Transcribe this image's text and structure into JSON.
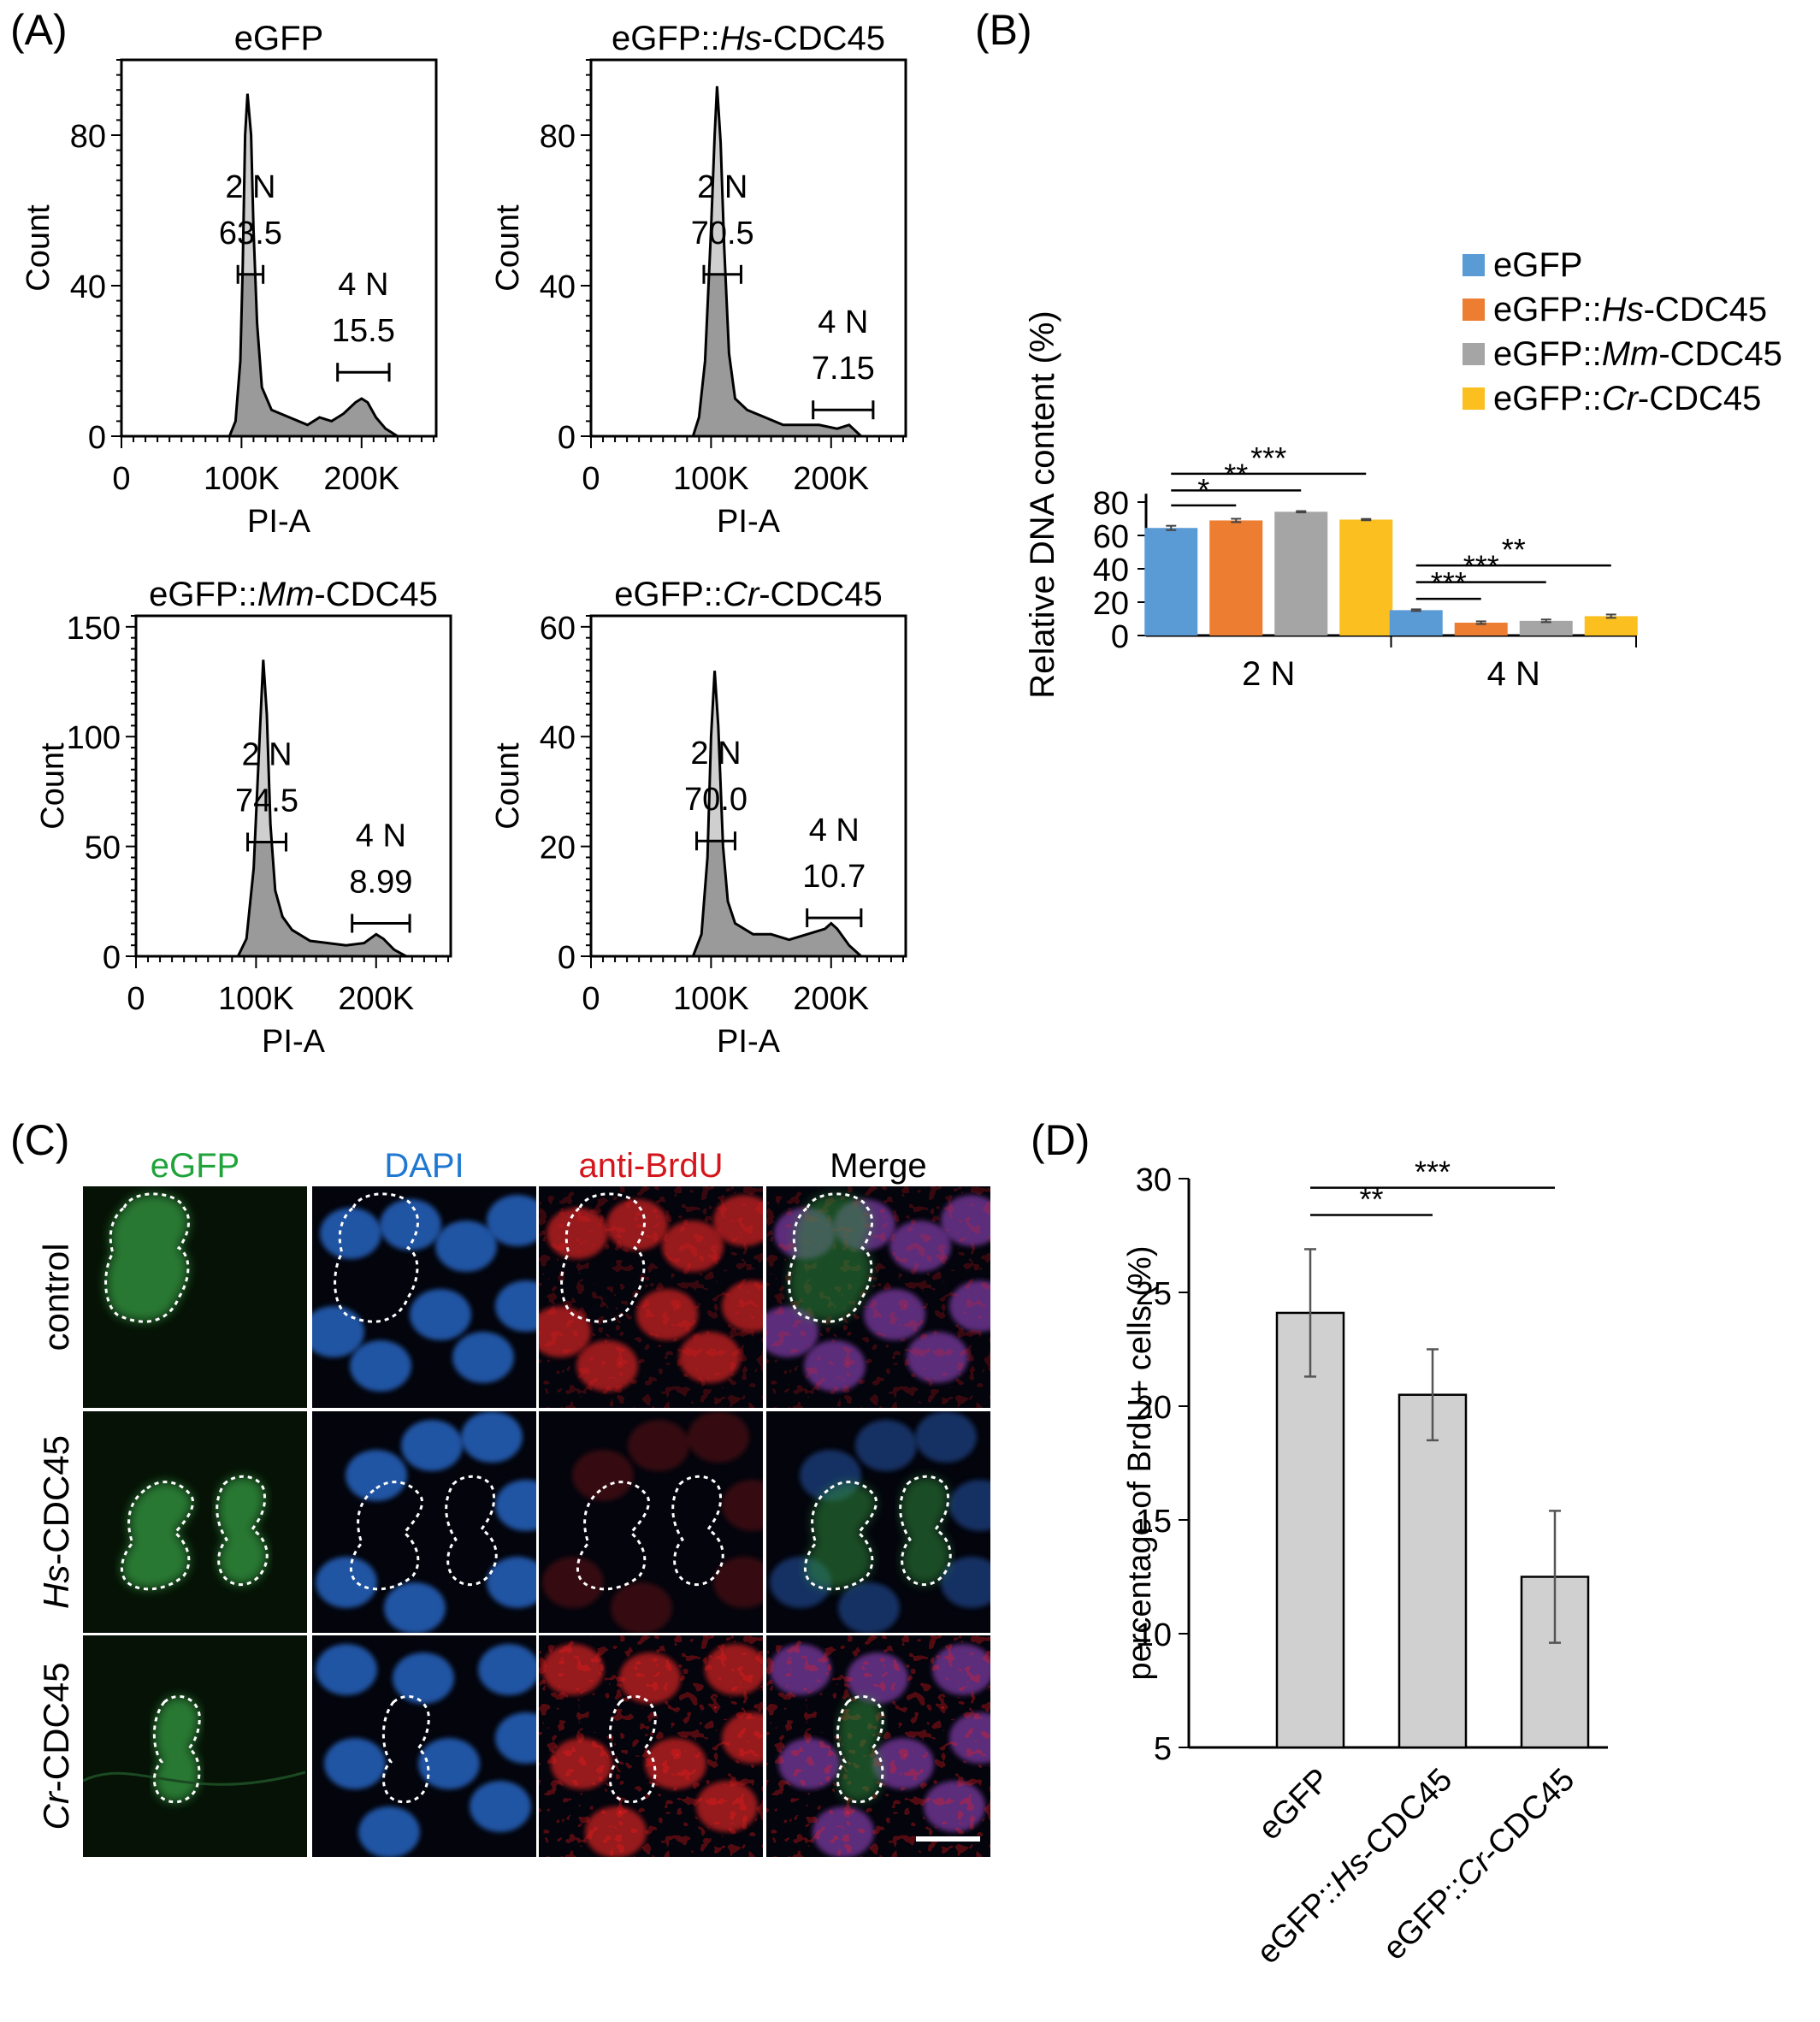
{
  "panel_labels": {
    "A": "(A)",
    "B": "(B)",
    "C": "(C)",
    "D": "(D)"
  },
  "colors": {
    "hist_fill": "#9a9a9a",
    "hist_highlight": "#cfcfcf",
    "eGFP": "#5b9bd5",
    "Hs": "#ed7d31",
    "Mm": "#a5a5a5",
    "Cr": "#fbbf1f",
    "bar_gray": "#d0d0d0",
    "gfp_green": "#1fa33a",
    "dapi_blue": "#1f78d1",
    "brdu_red": "#d4161c"
  },
  "chart_data": [
    {
      "id": "A1",
      "type": "area",
      "title": "eGFP",
      "title_parts": [
        {
          "text": "eGFP",
          "italic": false
        }
      ],
      "xlabel": "PI-A",
      "ylabel": "Count",
      "xlim": [
        0,
        262144
      ],
      "ylim": [
        0,
        100
      ],
      "xticks": [
        0,
        100000,
        200000
      ],
      "xtick_labels": [
        "0",
        "100K",
        "200K"
      ],
      "yticks": [
        0,
        40,
        80
      ],
      "ytick_labels": [
        "0",
        "40",
        "80"
      ],
      "curve": [
        [
          90000,
          0
        ],
        [
          95000,
          4
        ],
        [
          99000,
          20
        ],
        [
          101000,
          45
        ],
        [
          103000,
          80
        ],
        [
          105000,
          91
        ],
        [
          108000,
          80
        ],
        [
          110000,
          55
        ],
        [
          113000,
          30
        ],
        [
          117000,
          13
        ],
        [
          125000,
          7
        ],
        [
          140000,
          5
        ],
        [
          155000,
          3
        ],
        [
          165000,
          5
        ],
        [
          175000,
          4
        ],
        [
          185000,
          6
        ],
        [
          195000,
          9
        ],
        [
          200000,
          10
        ],
        [
          205000,
          9
        ],
        [
          212000,
          5
        ],
        [
          220000,
          2
        ],
        [
          230000,
          0
        ]
      ],
      "annotations": [
        {
          "label": "2 N",
          "value": "63.5",
          "range": [
            97000,
            118000
          ],
          "ymark": 43
        },
        {
          "label": "4 N",
          "value": "15.5",
          "range": [
            180000,
            223000
          ],
          "ymark": 17
        }
      ]
    },
    {
      "id": "A2",
      "type": "area",
      "title": "eGFP::Hs-CDC45",
      "title_parts": [
        {
          "text": "eGFP::",
          "italic": false
        },
        {
          "text": "Hs",
          "italic": true
        },
        {
          "text": "-CDC45",
          "italic": false
        }
      ],
      "xlabel": "PI-A",
      "ylabel": "Count",
      "xlim": [
        0,
        262144
      ],
      "ylim": [
        0,
        100
      ],
      "xticks": [
        0,
        100000,
        200000
      ],
      "xtick_labels": [
        "0",
        "100K",
        "200K"
      ],
      "yticks": [
        0,
        40,
        80
      ],
      "ytick_labels": [
        "0",
        "40",
        "80"
      ],
      "curve": [
        [
          85000,
          0
        ],
        [
          90000,
          5
        ],
        [
          95000,
          20
        ],
        [
          100000,
          55
        ],
        [
          103000,
          80
        ],
        [
          105000,
          93
        ],
        [
          108000,
          78
        ],
        [
          111000,
          50
        ],
        [
          115000,
          22
        ],
        [
          120000,
          10
        ],
        [
          130000,
          7
        ],
        [
          145000,
          5
        ],
        [
          160000,
          3
        ],
        [
          175000,
          3
        ],
        [
          190000,
          3
        ],
        [
          205000,
          2
        ],
        [
          215000,
          3
        ],
        [
          225000,
          0
        ]
      ],
      "annotations": [
        {
          "label": "2 N",
          "value": "70.5",
          "range": [
            94000,
            125000
          ],
          "ymark": 43
        },
        {
          "label": "4 N",
          "value": "7.15",
          "range": [
            185000,
            235000
          ],
          "ymark": 7
        }
      ]
    },
    {
      "id": "A3",
      "type": "area",
      "title": "eGFP::Mm-CDC45",
      "title_parts": [
        {
          "text": "eGFP::",
          "italic": false
        },
        {
          "text": "Mm",
          "italic": true
        },
        {
          "text": "-CDC45",
          "italic": false
        }
      ],
      "xlabel": "PI-A",
      "ylabel": "Count",
      "xlim": [
        0,
        262144
      ],
      "ylim": [
        0,
        155
      ],
      "xticks": [
        0,
        100000,
        200000
      ],
      "xtick_labels": [
        "0",
        "100K",
        "200K"
      ],
      "yticks": [
        0,
        50,
        100,
        150
      ],
      "ytick_labels": [
        "0",
        "50",
        "100",
        "150"
      ],
      "curve": [
        [
          85000,
          0
        ],
        [
          92000,
          8
        ],
        [
          98000,
          40
        ],
        [
          103000,
          100
        ],
        [
          106000,
          135
        ],
        [
          109000,
          110
        ],
        [
          112000,
          60
        ],
        [
          116000,
          30
        ],
        [
          122000,
          18
        ],
        [
          130000,
          12
        ],
        [
          145000,
          7
        ],
        [
          160000,
          6
        ],
        [
          175000,
          5
        ],
        [
          190000,
          6
        ],
        [
          200000,
          10
        ],
        [
          206000,
          8
        ],
        [
          215000,
          3
        ],
        [
          225000,
          0
        ]
      ],
      "annotations": [
        {
          "label": "2 N",
          "value": "74.5",
          "range": [
            93000,
            125000
          ],
          "ymark": 52
        },
        {
          "label": "4 N",
          "value": "8.99",
          "range": [
            180000,
            228000
          ],
          "ymark": 15
        }
      ]
    },
    {
      "id": "A4",
      "type": "area",
      "title": "eGFP::Cr-CDC45",
      "title_parts": [
        {
          "text": "eGFP::",
          "italic": false
        },
        {
          "text": "Cr",
          "italic": true
        },
        {
          "text": "-CDC45",
          "italic": false
        }
      ],
      "xlabel": "PI-A",
      "ylabel": "Count",
      "xlim": [
        0,
        262144
      ],
      "ylim": [
        0,
        62
      ],
      "xticks": [
        0,
        100000,
        200000
      ],
      "xtick_labels": [
        "0",
        "100K",
        "200K"
      ],
      "yticks": [
        0,
        20,
        40,
        60
      ],
      "ytick_labels": [
        "0",
        "20",
        "40",
        "60"
      ],
      "curve": [
        [
          85000,
          0
        ],
        [
          92000,
          4
        ],
        [
          97000,
          18
        ],
        [
          100000,
          40
        ],
        [
          103000,
          52
        ],
        [
          106000,
          42
        ],
        [
          110000,
          20
        ],
        [
          114000,
          10
        ],
        [
          120000,
          6
        ],
        [
          135000,
          4
        ],
        [
          150000,
          4
        ],
        [
          165000,
          3
        ],
        [
          180000,
          4
        ],
        [
          195000,
          5
        ],
        [
          200000,
          6
        ],
        [
          205000,
          5
        ],
        [
          215000,
          2
        ],
        [
          225000,
          0
        ]
      ],
      "annotations": [
        {
          "label": "2 N",
          "value": "70.0",
          "range": [
            88000,
            120000
          ],
          "ymark": 21
        },
        {
          "label": "4 N",
          "value": "10.7",
          "range": [
            180000,
            225000
          ],
          "ymark": 7
        }
      ]
    },
    {
      "id": "B",
      "type": "bar",
      "ylabel": "Relative DNA content (%)",
      "categories": [
        "2 N",
        "4 N"
      ],
      "ylim": [
        0,
        90
      ],
      "yticks": [
        0,
        20,
        40,
        60,
        80
      ],
      "series": [
        {
          "name": "eGFP",
          "name_parts": [
            {
              "text": "eGFP",
              "italic": false
            }
          ],
          "color": "#5b9bd5",
          "values": [
            64.5,
            15.2
          ],
          "errors": [
            1.3,
            0.5
          ]
        },
        {
          "name": "eGFP::Hs-CDC45",
          "name_parts": [
            {
              "text": "eGFP::",
              "italic": false
            },
            {
              "text": "Hs",
              "italic": true
            },
            {
              "text": "-CDC45",
              "italic": false
            }
          ],
          "color": "#ed7d31",
          "values": [
            69.0,
            7.7
          ],
          "errors": [
            1.0,
            0.8
          ]
        },
        {
          "name": "eGFP::Mm-CDC45",
          "name_parts": [
            {
              "text": "eGFP::",
              "italic": false
            },
            {
              "text": "Mm",
              "italic": true
            },
            {
              "text": "-CDC45",
              "italic": false
            }
          ],
          "color": "#a5a5a5",
          "values": [
            74.2,
            8.8
          ],
          "errors": [
            0.4,
            0.8
          ]
        },
        {
          "name": "eGFP::Cr-CDC45",
          "name_parts": [
            {
              "text": "eGFP::",
              "italic": false
            },
            {
              "text": "Cr",
              "italic": true
            },
            {
              "text": "-CDC45",
              "italic": false
            }
          ],
          "color": "#fbbf1f",
          "values": [
            69.5,
            11.6
          ],
          "errors": [
            0.4,
            1.0
          ]
        }
      ],
      "significance": [
        {
          "group": 0,
          "from": 0,
          "to": 1,
          "label": "*",
          "y": 78
        },
        {
          "group": 0,
          "from": 0,
          "to": 2,
          "label": "**",
          "y": 87
        },
        {
          "group": 0,
          "from": 0,
          "to": 3,
          "label": "***",
          "y": 97
        },
        {
          "group": 1,
          "from": 0,
          "to": 1,
          "label": "***",
          "y": 22
        },
        {
          "group": 1,
          "from": 0,
          "to": 2,
          "label": "***",
          "y": 32
        },
        {
          "group": 1,
          "from": 0,
          "to": 3,
          "label": "**",
          "y": 42
        }
      ],
      "legend_position": "top-right"
    },
    {
      "id": "D",
      "type": "bar",
      "ylabel": "percentage of BrdU+ cells (%)",
      "categories": [
        "eGFP",
        "eGFP::Hs-CDC45",
        "eGFP::Cr-CDC45"
      ],
      "category_parts": [
        [
          {
            "text": "eGFP",
            "italic": false
          }
        ],
        [
          {
            "text": "eGFP::",
            "italic": false
          },
          {
            "text": "Hs",
            "italic": true
          },
          {
            "text": "-CDC45",
            "italic": false
          }
        ],
        [
          {
            "text": "eGFP::",
            "italic": false
          },
          {
            "text": "Cr",
            "italic": true
          },
          {
            "text": "-CDC45",
            "italic": false
          }
        ]
      ],
      "values": [
        24.1,
        20.5,
        12.5
      ],
      "errors": [
        2.8,
        2.0,
        2.9
      ],
      "ylim": [
        5,
        30
      ],
      "yticks": [
        5,
        10,
        15,
        20,
        25,
        30
      ],
      "significance": [
        {
          "from": 0,
          "to": 1,
          "label": "**",
          "y": 28.4
        },
        {
          "from": 0,
          "to": 2,
          "label": "***",
          "y": 29.6
        }
      ]
    }
  ],
  "micrographs": {
    "columns": [
      "eGFP",
      "DAPI",
      "anti-BrdU",
      "Merge"
    ],
    "rows": [
      {
        "label_parts": [
          {
            "text": "control",
            "italic": false
          }
        ]
      },
      {
        "label_parts": [
          {
            "text": "Hs",
            "italic": true
          },
          {
            "text": "-CDC45",
            "italic": false
          }
        ]
      },
      {
        "label_parts": [
          {
            "text": "Cr",
            "italic": true
          },
          {
            "text": "-CDC45",
            "italic": false
          }
        ]
      }
    ]
  }
}
